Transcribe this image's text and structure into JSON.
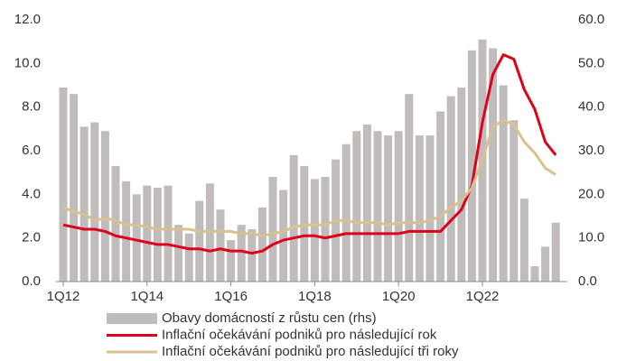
{
  "chart_data": {
    "type": "bar-line",
    "categories": [
      "1Q12",
      null,
      null,
      null,
      null,
      null,
      null,
      null,
      "1Q14",
      null,
      null,
      null,
      null,
      null,
      null,
      null,
      "1Q16",
      null,
      null,
      null,
      null,
      null,
      null,
      null,
      "1Q18",
      null,
      null,
      null,
      null,
      null,
      null,
      null,
      "1Q20",
      null,
      null,
      null,
      null,
      null,
      null,
      null,
      "1Q22",
      null,
      null,
      null,
      null,
      null,
      null,
      null
    ],
    "series": [
      {
        "name": "Obavy domácností z růstu cen (rhs)",
        "color": "#bfbcbb",
        "axis": "y2",
        "kind": "bar",
        "values": [
          44.5,
          43,
          35.5,
          36.5,
          34.5,
          26.5,
          23,
          20,
          22,
          21.5,
          22,
          13,
          11,
          18.5,
          22.5,
          16.5,
          9.5,
          13,
          12,
          17,
          24,
          21,
          29,
          26.5,
          23.5,
          24,
          28,
          31.5,
          34.5,
          36,
          34.5,
          33.5,
          34.5,
          43,
          33.5,
          33.5,
          39,
          42.5,
          44.5,
          53,
          55.5,
          53.5,
          45,
          37,
          19,
          3.5,
          8,
          13.5
        ]
      },
      {
        "name": "Inflační očekávání podniků pro následující rok",
        "color": "#e0001a",
        "kind": "line",
        "values": [
          2.6,
          2.5,
          2.4,
          2.4,
          2.3,
          2.1,
          2.0,
          1.9,
          1.8,
          1.7,
          1.7,
          1.6,
          1.5,
          1.5,
          1.4,
          1.5,
          1.4,
          1.4,
          1.3,
          1.4,
          1.7,
          1.9,
          2.0,
          2.1,
          2.1,
          2.0,
          2.1,
          2.2,
          2.2,
          2.2,
          2.2,
          2.2,
          2.2,
          2.3,
          2.3,
          2.3,
          2.3,
          2.8,
          3.3,
          4.4,
          7.3,
          9.5,
          10.4,
          10.2,
          8.8,
          7.9,
          6.4,
          5.8
        ]
      },
      {
        "name": "Inflační očekávání podniků pro následující tři roky",
        "color": "#d9c190",
        "kind": "line",
        "values": [
          3.4,
          3.2,
          3.1,
          2.8,
          2.9,
          2.8,
          2.6,
          2.6,
          2.5,
          2.4,
          2.4,
          2.4,
          2.4,
          2.3,
          2.3,
          2.3,
          2.3,
          2.2,
          2.2,
          2.1,
          2.2,
          2.3,
          2.5,
          2.6,
          2.6,
          2.6,
          2.8,
          2.8,
          2.7,
          2.7,
          2.7,
          2.6,
          2.7,
          2.7,
          2.7,
          2.8,
          3.0,
          3.4,
          3.7,
          4.3,
          5.6,
          7.1,
          7.4,
          7.2,
          6.4,
          5.9,
          5.2,
          4.9
        ]
      }
    ],
    "ylim": [
      0,
      12
    ],
    "yticks": [
      {
        "value": 0,
        "label": "0.0"
      },
      {
        "value": 2,
        "label": "2.0"
      },
      {
        "value": 4,
        "label": "4.0"
      },
      {
        "value": 6,
        "label": "6.0"
      },
      {
        "value": 8,
        "label": "8.0"
      },
      {
        "value": 10,
        "label": "10.0"
      },
      {
        "value": 12,
        "label": "12.0"
      }
    ],
    "y2lim": [
      0,
      60
    ],
    "y2ticks": [
      {
        "value": 0,
        "label": "0.0"
      },
      {
        "value": 10,
        "label": "10.0"
      },
      {
        "value": 20,
        "label": "20.0"
      },
      {
        "value": 30,
        "label": "30.0"
      },
      {
        "value": 40,
        "label": "40.0"
      },
      {
        "value": 50,
        "label": "50.0"
      },
      {
        "value": 60,
        "label": "60.0"
      }
    ]
  }
}
